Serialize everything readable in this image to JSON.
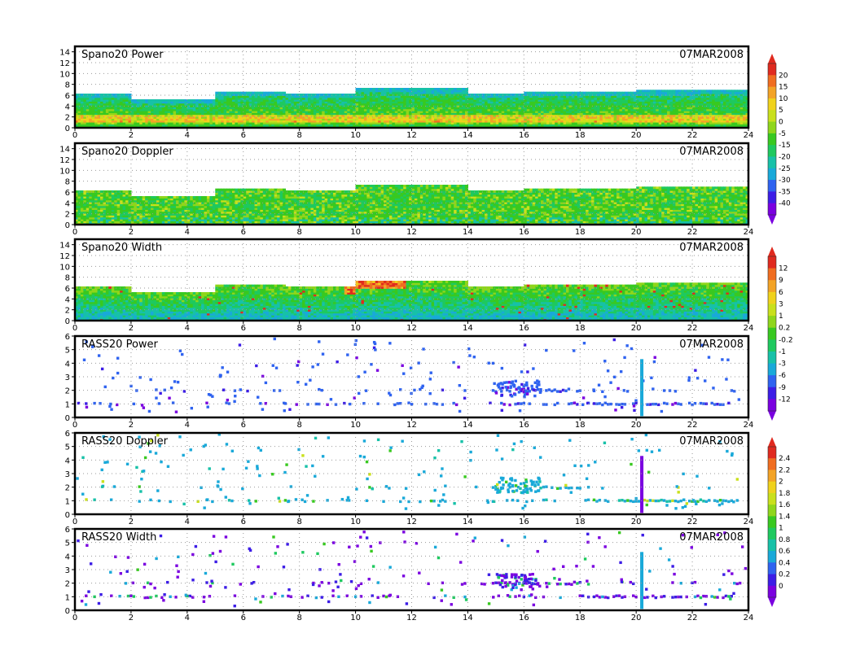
{
  "chart_data": [
    {
      "type": "heatmap",
      "title": "Spano20 Power",
      "date_label": "07MAR2008",
      "x": {
        "ticks": [
          "0",
          "2",
          "4",
          "6",
          "8",
          "10",
          "12",
          "14",
          "16",
          "18",
          "20",
          "22",
          "24"
        ],
        "lim": [
          0,
          24
        ]
      },
      "y": {
        "ticks": [
          "0",
          "2",
          "4",
          "6",
          "8",
          "10",
          "12",
          "14"
        ],
        "lim": [
          0,
          15
        ]
      },
      "grid": true,
      "colorbar": [
        "20",
        "15",
        "10",
        "5",
        "0",
        "-5",
        "-15",
        "-20",
        "-25",
        "-30",
        "-35",
        "-40"
      ],
      "mode": "profile-power",
      "top_height": [
        6.2,
        6.2,
        6.2,
        6.2,
        5.0,
        5.0,
        5.0,
        5.0,
        5.0,
        5.0,
        6.5,
        6.5,
        6.5,
        6.5,
        6.5,
        6.0,
        6.0,
        6.0,
        6.0,
        6.0,
        7.3,
        7.3,
        7.3,
        7.3,
        7.0,
        7.0,
        7.0,
        7.0,
        6.0,
        6.0,
        6.0,
        6.0,
        6.5,
        6.5,
        6.5,
        6.5,
        6.4,
        6.4,
        6.4,
        6.4,
        6.7,
        6.7,
        6.7,
        6.7,
        6.8,
        6.8,
        6.8,
        6.8
      ]
    },
    {
      "type": "heatmap",
      "title": "Spano20 Doppler",
      "date_label": "07MAR2008",
      "x": {
        "ticks": [
          "0",
          "2",
          "4",
          "6",
          "8",
          "10",
          "12",
          "14",
          "16",
          "18",
          "20",
          "22",
          "24"
        ],
        "lim": [
          0,
          24
        ]
      },
      "y": {
        "ticks": [
          "0",
          "2",
          "4",
          "6",
          "8",
          "10",
          "12",
          "14"
        ],
        "lim": [
          0,
          15
        ]
      },
      "grid": true,
      "mode": "profile-doppler",
      "top_height": [
        6.2,
        6.2,
        6.2,
        6.2,
        5.0,
        5.0,
        5.0,
        5.0,
        5.0,
        5.0,
        6.5,
        6.5,
        6.5,
        6.5,
        6.5,
        6.0,
        6.0,
        6.0,
        6.0,
        6.0,
        7.3,
        7.3,
        7.3,
        7.3,
        7.0,
        7.0,
        7.0,
        7.0,
        6.0,
        6.0,
        6.0,
        6.0,
        6.5,
        6.5,
        6.5,
        6.5,
        6.4,
        6.4,
        6.4,
        6.4,
        6.7,
        6.7,
        6.7,
        6.7,
        6.8,
        6.8,
        6.8,
        6.8
      ]
    },
    {
      "type": "heatmap",
      "title": "Spano20 Width",
      "date_label": "07MAR2008",
      "x": {
        "ticks": [
          "0",
          "2",
          "4",
          "6",
          "8",
          "10",
          "12",
          "14",
          "16",
          "18",
          "20",
          "22",
          "24"
        ],
        "lim": [
          0,
          24
        ]
      },
      "y": {
        "ticks": [
          "0",
          "2",
          "4",
          "6",
          "8",
          "10",
          "12",
          "14"
        ],
        "lim": [
          0,
          15
        ]
      },
      "grid": true,
      "colorbar": [
        "12",
        "9",
        "6",
        "3",
        "1",
        "0.2",
        "-0.2",
        "-1",
        "-3",
        "-6",
        "-9",
        "-12"
      ],
      "mode": "profile-width",
      "top_height": [
        6.2,
        6.2,
        6.2,
        6.2,
        5.0,
        5.0,
        5.0,
        5.0,
        5.0,
        5.0,
        6.5,
        6.5,
        6.5,
        6.5,
        6.5,
        6.0,
        6.0,
        6.0,
        6.0,
        6.0,
        7.3,
        7.3,
        7.3,
        7.3,
        7.0,
        7.0,
        7.0,
        7.0,
        6.0,
        6.0,
        6.0,
        6.0,
        6.5,
        6.5,
        6.5,
        6.5,
        6.4,
        6.4,
        6.4,
        6.4,
        6.7,
        6.7,
        6.7,
        6.7,
        6.8,
        6.8,
        6.8,
        6.8
      ]
    },
    {
      "type": "heatmap",
      "title": "RASS20 Power",
      "date_label": "07MAR2008",
      "x": {
        "ticks": [
          "0",
          "2",
          "4",
          "6",
          "8",
          "10",
          "12",
          "14",
          "16",
          "18",
          "20",
          "22",
          "24"
        ],
        "lim": [
          0,
          24
        ]
      },
      "y": {
        "ticks": [
          "0",
          "1",
          "2",
          "3",
          "4",
          "5",
          "6"
        ],
        "lim": [
          0,
          6
        ]
      },
      "grid": true,
      "mode": "rass-power",
      "spike_x": 20.2,
      "spike_top": 4.3
    },
    {
      "type": "heatmap",
      "title": "RASS20 Doppler",
      "date_label": "07MAR2008",
      "x": {
        "ticks": [
          "0",
          "2",
          "4",
          "6",
          "8",
          "10",
          "12",
          "14",
          "16",
          "18",
          "20",
          "22",
          "24"
        ],
        "lim": [
          0,
          24
        ]
      },
      "y": {
        "ticks": [
          "0",
          "1",
          "2",
          "3",
          "4",
          "5",
          "6"
        ],
        "lim": [
          0,
          6
        ]
      },
      "grid": true,
      "colorbar": [
        "2.4",
        "2.2",
        "2",
        "1.8",
        "1.6",
        "1.4",
        "1",
        "0.8",
        "0.6",
        "0.4",
        "0.2",
        "0"
      ],
      "mode": "rass-doppler",
      "spike_x": 20.2,
      "spike_top": 4.3
    },
    {
      "type": "heatmap",
      "title": "RASS20 Width",
      "date_label": "07MAR2008",
      "x": {
        "ticks": [
          "0",
          "2",
          "4",
          "6",
          "8",
          "10",
          "12",
          "14",
          "16",
          "18",
          "20",
          "22",
          "24"
        ],
        "lim": [
          0,
          24
        ]
      },
      "y": {
        "ticks": [
          "0",
          "1",
          "2",
          "3",
          "4",
          "5",
          "6"
        ],
        "lim": [
          0,
          6
        ]
      },
      "grid": true,
      "mode": "rass-width",
      "spike_x": 20.2,
      "spike_top": 4.3
    }
  ],
  "palette": [
    "#7a00e0",
    "#3c1de6",
    "#2f63f0",
    "#19a9d9",
    "#17c1a8",
    "#1ec95f",
    "#38c920",
    "#8fd61b",
    "#c9e01c",
    "#f0d21c",
    "#f3a326",
    "#f06d20",
    "#e02a1f"
  ]
}
